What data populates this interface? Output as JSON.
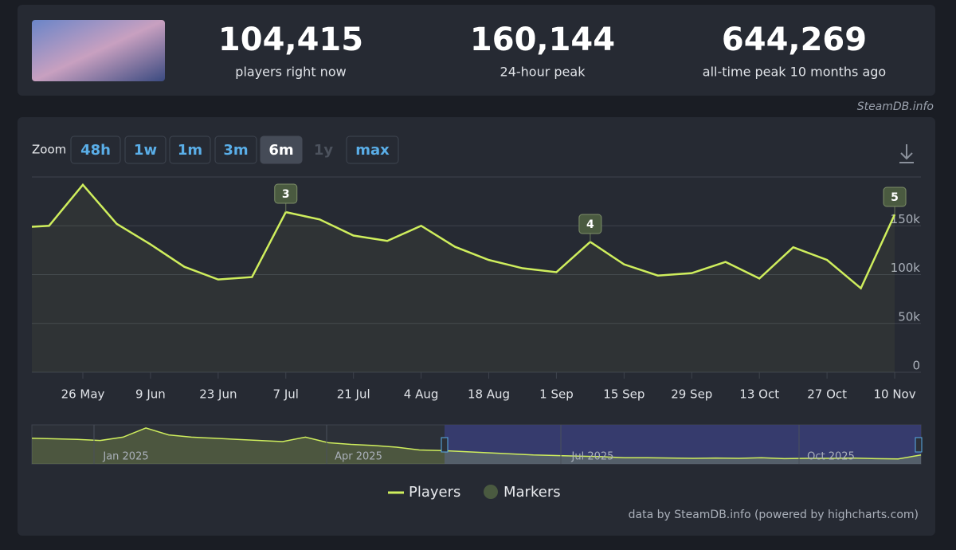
{
  "stats": [
    {
      "value": "104,415",
      "label": "players right now"
    },
    {
      "value": "160,144",
      "label": "24-hour peak"
    },
    {
      "value": "644,269",
      "label": "all-time peak 10 months ago"
    }
  ],
  "site": "SteamDB.info",
  "zoom": {
    "label": "Zoom",
    "buttons": [
      "48h",
      "1w",
      "1m",
      "3m",
      "6m",
      "1y",
      "max"
    ],
    "active": "6m",
    "disabled": "1y"
  },
  "chart_data": {
    "type": "line",
    "categories": [
      null,
      null,
      "26 May",
      null,
      "9 Jun",
      null,
      "23 Jun",
      null,
      "7 Jul",
      null,
      "21 Jul",
      null,
      "4 Aug",
      null,
      "18 Aug",
      null,
      "1 Sep",
      null,
      "15 Sep",
      null,
      "29 Sep",
      null,
      "13 Oct",
      null,
      "27 Oct",
      null,
      "10 Nov"
    ],
    "series": [
      {
        "name": "Players",
        "color": "#cfee5d",
        "values": [
          149000,
          150000,
          192000,
          152000,
          131000,
          108000,
          95000,
          97500,
          164000,
          156500,
          140000,
          134500,
          150000,
          128500,
          115000,
          106500,
          102500,
          133500,
          110500,
          99000,
          101500,
          113000,
          96000,
          128000,
          115000,
          86000,
          161500
        ]
      }
    ],
    "ylim": [
      0,
      200000
    ],
    "yticks": [
      0,
      {
        "value": 50000,
        "label": "50k"
      },
      {
        "value": 100000,
        "label": "100k"
      },
      {
        "value": 150000,
        "label": "150k"
      }
    ],
    "grid": true,
    "markers": {
      "name": "Markers",
      "color": "#4a5a40",
      "labels": [
        "3",
        "4",
        "5"
      ]
    },
    "navigator": {
      "labels": [
        "Jan 2025",
        "Apr 2025",
        "Jul 2025",
        "Oct 2025"
      ],
      "ylim": [
        0,
        700000
      ],
      "values": [
        460000,
        450000,
        440000,
        420000,
        480000,
        644000,
        520000,
        480000,
        460000,
        440000,
        420000,
        400000,
        480000,
        380000,
        350000,
        330000,
        300000,
        250000,
        240000,
        220000,
        200000,
        180000,
        160000,
        150000,
        140000,
        130000,
        110000,
        110000,
        105000,
        100000,
        105000,
        100000,
        110000,
        95000,
        100000,
        100000,
        105000,
        95000,
        90000,
        160000
      ]
    },
    "credit": "data by SteamDB.info (powered by highcharts.com)"
  }
}
